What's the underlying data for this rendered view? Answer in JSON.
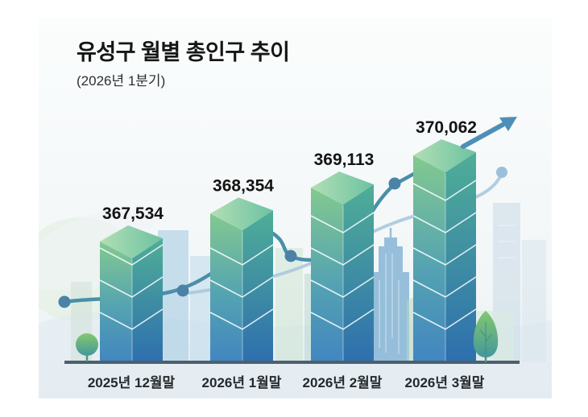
{
  "title": "유성구 월별 총인구 추이",
  "subtitle": "(2026년 1분기)",
  "chart_data": {
    "type": "bar",
    "title": "유성구 월별 총인구 추이",
    "subtitle": "(2026년 1분기)",
    "categories": [
      "2025년 12월말",
      "2026년 1월말",
      "2026년 2월말",
      "2026년 3월말"
    ],
    "values": [
      367534,
      368354,
      369113,
      370062
    ],
    "value_labels": [
      "367,534",
      "368,354",
      "369,113",
      "370,062"
    ],
    "xlabel": "",
    "ylabel": "",
    "ylim": [
      367000,
      370500
    ],
    "grid": false,
    "legend": "none",
    "style": "3D isometric stacked-cube bars with rising trend line and arrow over a pale city-skyline watercolor background",
    "colors": {
      "bar_top_face_left": "#b2dfb4",
      "bar_top_face_right": "#6cc2a2",
      "bar_front_top": "#83c98f",
      "bar_front_bottom": "#4286c0",
      "bar_side_top": "#4fae97",
      "bar_side_bottom": "#2e6fae",
      "trend_line": "#4a8fa8",
      "trend_line_secondary": "#a9c9dd",
      "trend_dot": "#4a82a8",
      "arrow": "#4e8fb8",
      "baseline": "#4c5f6e",
      "value_label_text": "#141414",
      "axis_label_text": "#26292c",
      "tree_green": "#7cc36c"
    }
  }
}
